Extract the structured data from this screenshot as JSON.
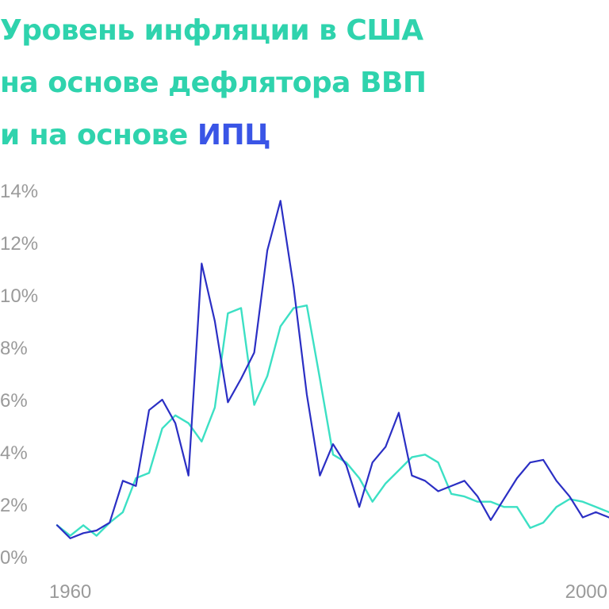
{
  "title": {
    "line1": "Уровень инфляции в США",
    "line2": "на основе дефлятора ВВП",
    "line3_prefix": "и на основе ",
    "line3_accent": "ИПЦ"
  },
  "colors": {
    "title": "#2fd3ad",
    "accent": "#3a55e6",
    "cpi_line": "#2b2fc4",
    "deflator_line": "#3ce0c4",
    "tick_text": "#9a9a9a"
  },
  "chart_data": {
    "type": "line",
    "title": "Уровень инфляции в США на основе дефлятора ВВП и на основе ИПЦ",
    "xlabel": "",
    "ylabel": "",
    "xlim": [
      1959,
      2001
    ],
    "ylim": [
      0,
      14
    ],
    "y_ticks": [
      "0%",
      "2%",
      "4%",
      "6%",
      "8%",
      "10%",
      "12%",
      "14%"
    ],
    "x_ticks": [
      1960,
      2000
    ],
    "grid": false,
    "legend": "none",
    "series": [
      {
        "key": "cpi",
        "color": "#2b2fc4",
        "x": [
          1959,
          1960,
          1961,
          1962,
          1963,
          1964,
          1965,
          1966,
          1967,
          1968,
          1969,
          1970,
          1971,
          1972,
          1973,
          1974,
          1975,
          1976,
          1977,
          1978,
          1979,
          1980,
          1981,
          1982,
          1983,
          1984,
          1985,
          1986,
          1987,
          1988,
          1989,
          1990,
          1991,
          1992,
          1993,
          1994,
          1995,
          1996,
          1997,
          1998,
          1999,
          2000,
          2001
        ],
        "values": [
          1.2,
          0.7,
          0.9,
          1.0,
          1.3,
          2.9,
          2.7,
          5.6,
          6.0,
          5.1,
          3.1,
          11.2,
          9.0,
          5.9,
          6.8,
          7.8,
          11.7,
          13.6,
          10.3,
          6.2,
          3.1,
          4.3,
          3.5,
          1.9,
          3.6,
          4.2,
          5.5,
          3.1,
          2.9,
          2.5,
          2.7,
          2.9,
          2.3,
          1.4,
          2.2,
          3.0,
          3.6,
          3.7,
          2.9,
          2.3,
          1.5,
          1.7,
          1.5
        ]
      },
      {
        "key": "deflator",
        "color": "#3ce0c4",
        "x": [
          1959,
          1960,
          1961,
          1962,
          1963,
          1964,
          1965,
          1966,
          1967,
          1968,
          1969,
          1970,
          1971,
          1972,
          1973,
          1974,
          1975,
          1976,
          1977,
          1978,
          1979,
          1980,
          1981,
          1982,
          1983,
          1984,
          1985,
          1986,
          1987,
          1988,
          1989,
          1990,
          1991,
          1992,
          1993,
          1994,
          1995,
          1996,
          1997,
          1998,
          1999,
          2000,
          2001
        ],
        "values": [
          1.2,
          0.8,
          1.2,
          0.8,
          1.3,
          1.7,
          3.0,
          3.2,
          4.9,
          5.4,
          5.1,
          4.4,
          5.7,
          9.3,
          9.5,
          5.8,
          6.9,
          8.8,
          9.5,
          9.6,
          6.8,
          3.9,
          3.6,
          3.0,
          2.1,
          2.8,
          3.3,
          3.8,
          3.9,
          3.6,
          2.4,
          2.3,
          2.1,
          2.1,
          1.9,
          1.9,
          1.1,
          1.3,
          1.9,
          2.2,
          2.1,
          1.9,
          1.7
        ]
      }
    ],
    "annotations": []
  }
}
